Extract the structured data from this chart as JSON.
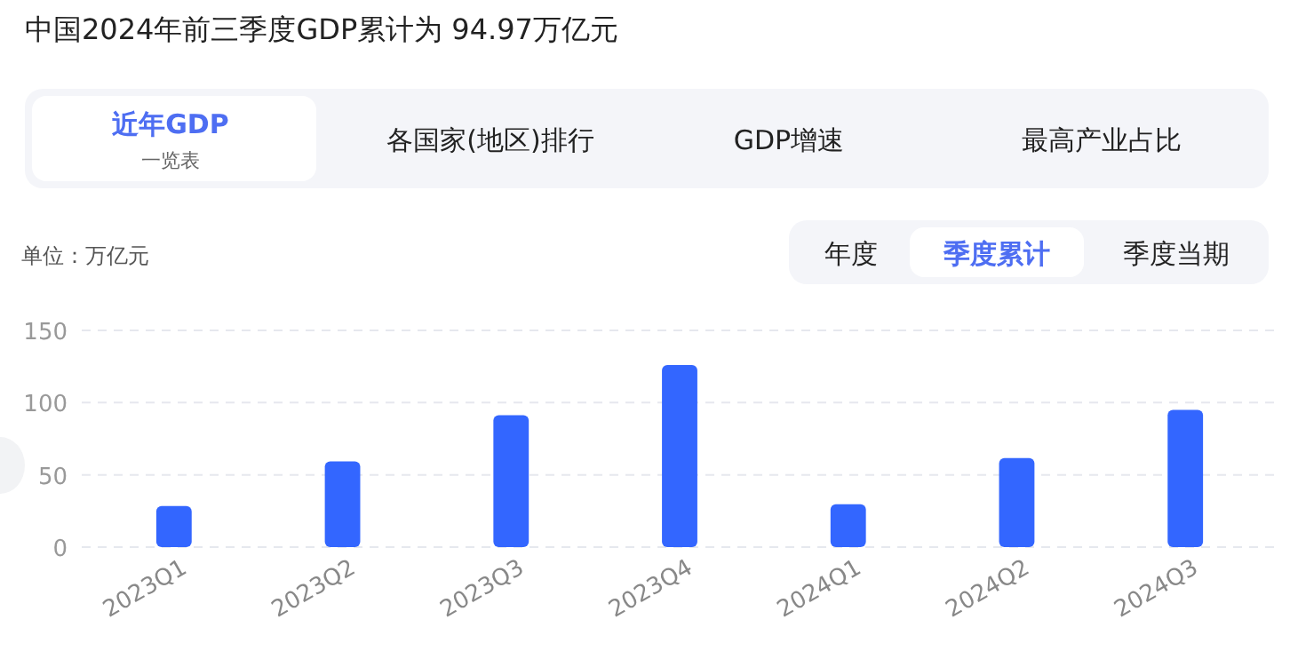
{
  "chart_data": {
    "type": "bar",
    "title": "中国2024年前三季度GDP累计为 94.97万亿元",
    "annotations": [
      "单位：万亿元",
      "近年GDP",
      "一览表",
      "各国家(地区)排行",
      "GDP增速",
      "最高产业占比",
      "年度",
      "季度累计",
      "季度当期"
    ],
    "categories": [
      "2023Q1",
      "2023Q2",
      "2023Q3",
      "2023Q4",
      "2024Q1",
      "2024Q2",
      "2024Q3"
    ],
    "values": [
      28.5,
      59.3,
      91.3,
      126.1,
      29.6,
      61.7,
      95
    ],
    "color": "#3366ff",
    "ylim": [
      0,
      150
    ],
    "yticks": [
      0,
      50,
      100,
      150
    ],
    "grid": "y"
  }
}
